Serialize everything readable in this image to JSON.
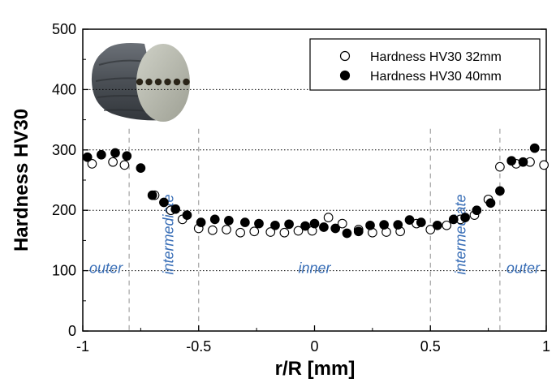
{
  "chart_data": {
    "type": "scatter",
    "xlabel": "r/R [mm]",
    "ylabel": "Hardness HV30",
    "xlim": [
      -1,
      1
    ],
    "ylim": [
      0,
      500
    ],
    "x_ticks": [
      "-1",
      "-0.5",
      "0",
      "0.5",
      "1"
    ],
    "y_ticks": [
      "0",
      "100",
      "200",
      "300",
      "400",
      "500"
    ],
    "grid": "horizontal dotted at 100, 200, 300, 400",
    "legend_position": "top-right",
    "region_boundaries": [
      -0.8,
      -0.5,
      0.5,
      0.8
    ],
    "region_labels": [
      {
        "text": "outer",
        "x": -0.9,
        "y": 115,
        "rotated": false
      },
      {
        "text": "intermediate",
        "x": -0.63,
        "y": 160,
        "rotated": true
      },
      {
        "text": "inner",
        "x": 0.0,
        "y": 115,
        "rotated": false
      },
      {
        "text": "intermediate",
        "x": 0.63,
        "y": 160,
        "rotated": true
      },
      {
        "text": "outer",
        "x": 0.9,
        "y": 115,
        "rotated": false
      }
    ],
    "series": [
      {
        "name": "Hardness HV30 32mm",
        "marker": "open-circle",
        "color": "#ffffff",
        "stroke": "#000000",
        "points": [
          [
            -0.96,
            277
          ],
          [
            -0.87,
            280
          ],
          [
            -0.82,
            275
          ],
          [
            -0.69,
            225
          ],
          [
            -0.62,
            200
          ],
          [
            -0.57,
            185
          ],
          [
            -0.5,
            170
          ],
          [
            -0.44,
            167
          ],
          [
            -0.38,
            168
          ],
          [
            -0.32,
            163
          ],
          [
            -0.26,
            165
          ],
          [
            -0.19,
            164
          ],
          [
            -0.13,
            163
          ],
          [
            -0.07,
            166
          ],
          [
            -0.01,
            166
          ],
          [
            0.06,
            188
          ],
          [
            0.12,
            178
          ],
          [
            0.19,
            168
          ],
          [
            0.25,
            163
          ],
          [
            0.31,
            164
          ],
          [
            0.37,
            165
          ],
          [
            0.44,
            178
          ],
          [
            0.5,
            168
          ],
          [
            0.57,
            175
          ],
          [
            0.63,
            185
          ],
          [
            0.69,
            192
          ],
          [
            0.75,
            218
          ],
          [
            0.8,
            272
          ],
          [
            0.87,
            277
          ],
          [
            0.93,
            280
          ],
          [
            0.99,
            275
          ]
        ]
      },
      {
        "name": "Hardness HV30 40mm",
        "marker": "filled-circle",
        "color": "#000000",
        "stroke": "#000000",
        "points": [
          [
            -0.98,
            288
          ],
          [
            -0.92,
            292
          ],
          [
            -0.86,
            295
          ],
          [
            -0.81,
            290
          ],
          [
            -0.75,
            270
          ],
          [
            -0.7,
            225
          ],
          [
            -0.65,
            213
          ],
          [
            -0.6,
            202
          ],
          [
            -0.55,
            192
          ],
          [
            -0.49,
            180
          ],
          [
            -0.43,
            185
          ],
          [
            -0.37,
            183
          ],
          [
            -0.3,
            180
          ],
          [
            -0.24,
            178
          ],
          [
            -0.17,
            175
          ],
          [
            -0.11,
            177
          ],
          [
            -0.04,
            174
          ],
          [
            0.0,
            178
          ],
          [
            0.04,
            172
          ],
          [
            0.09,
            170
          ],
          [
            0.14,
            162
          ],
          [
            0.19,
            165
          ],
          [
            0.24,
            175
          ],
          [
            0.3,
            176
          ],
          [
            0.36,
            176
          ],
          [
            0.41,
            184
          ],
          [
            0.46,
            180
          ],
          [
            0.53,
            175
          ],
          [
            0.6,
            185
          ],
          [
            0.65,
            188
          ],
          [
            0.7,
            200
          ],
          [
            0.76,
            212
          ],
          [
            0.8,
            232
          ],
          [
            0.85,
            282
          ],
          [
            0.9,
            280
          ],
          [
            0.95,
            303
          ]
        ]
      }
    ]
  },
  "inset_image": {
    "description_icon": "cylinder-sample-icon",
    "colors": {
      "body": "#4a4f55",
      "face": "#b8bab0",
      "holes": "#2a2418"
    }
  }
}
